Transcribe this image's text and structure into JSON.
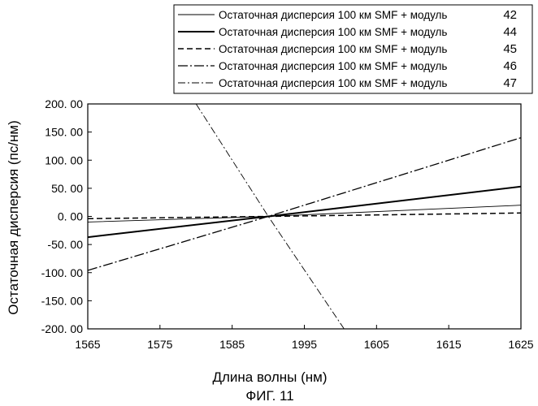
{
  "chart_data": {
    "type": "line",
    "title": "",
    "caption": "ФИГ. 11",
    "xlabel": "Длина волны (нм)",
    "ylabel": "Остаточная дисперсия (пс/нм)",
    "x_ticks": [
      "1565",
      "1575",
      "1585",
      "1995",
      "1605",
      "1615",
      "1625"
    ],
    "x_values": [
      1565,
      1575,
      1585,
      1595,
      1605,
      1615,
      1625
    ],
    "xlim": [
      1565,
      1625
    ],
    "ylim": [
      -200,
      200
    ],
    "y_ticks": [
      "200. 00",
      "150. 00",
      "100. 00",
      "50. 00",
      "0. 00",
      "-50. 00",
      "-100. 00",
      "-150. 00",
      "-200. 00"
    ],
    "y_tick_values": [
      200,
      150,
      100,
      50,
      0,
      -50,
      -100,
      -150,
      -200
    ],
    "grid": false,
    "legend_position": "top-right, outside",
    "series": [
      {
        "name": "Остаточная дисперсия 100 км SMF + модуль",
        "ref": "42",
        "style": "thin-solid",
        "x": [
          1565,
          1590,
          1625
        ],
        "y": [
          -10,
          0,
          20
        ]
      },
      {
        "name": "Остаточная дисперсия 100 км SMF + модуль",
        "ref": "44",
        "style": "thick-solid",
        "x": [
          1565,
          1590,
          1625
        ],
        "y": [
          -37,
          0,
          53
        ]
      },
      {
        "name": "Остаточная дисперсия 100 км SMF + модуль",
        "ref": "45",
        "style": "dashed",
        "x": [
          1565,
          1590,
          1625
        ],
        "y": [
          -4,
          0,
          6
        ]
      },
      {
        "name": "Остаточная дисперсия 100 км SMF + модуль",
        "ref": "46",
        "style": "dash-dot",
        "x": [
          1565,
          1590,
          1625
        ],
        "y": [
          -96,
          0,
          140
        ]
      },
      {
        "name": "Остаточная дисперсия 100 км SMF + модуль",
        "ref": "47",
        "style": "thin-dash-dot",
        "x": [
          1580,
          1590,
          1600.5
        ],
        "y": [
          200,
          0,
          -200
        ]
      }
    ]
  }
}
